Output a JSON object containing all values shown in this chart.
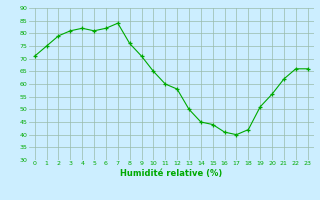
{
  "x": [
    0,
    1,
    2,
    3,
    4,
    5,
    6,
    7,
    8,
    9,
    10,
    11,
    12,
    13,
    14,
    15,
    16,
    17,
    18,
    19,
    20,
    21,
    22,
    23
  ],
  "y": [
    71,
    75,
    79,
    81,
    82,
    81,
    82,
    84,
    76,
    71,
    65,
    60,
    58,
    50,
    45,
    44,
    41,
    40,
    42,
    51,
    56,
    62,
    66,
    66
  ],
  "line_color": "#00aa00",
  "marker_color": "#00aa00",
  "bg_color": "#cceeff",
  "grid_color": "#99bbaa",
  "xlabel": "Humidité relative (%)",
  "xlabel_color": "#00aa00",
  "tick_color": "#00aa00",
  "ylim": [
    30,
    90
  ],
  "yticks": [
    30,
    35,
    40,
    45,
    50,
    55,
    60,
    65,
    70,
    75,
    80,
    85,
    90
  ],
  "xlim": [
    -0.5,
    23.5
  ],
  "xticks": [
    0,
    1,
    2,
    3,
    4,
    5,
    6,
    7,
    8,
    9,
    10,
    11,
    12,
    13,
    14,
    15,
    16,
    17,
    18,
    19,
    20,
    21,
    22,
    23
  ]
}
